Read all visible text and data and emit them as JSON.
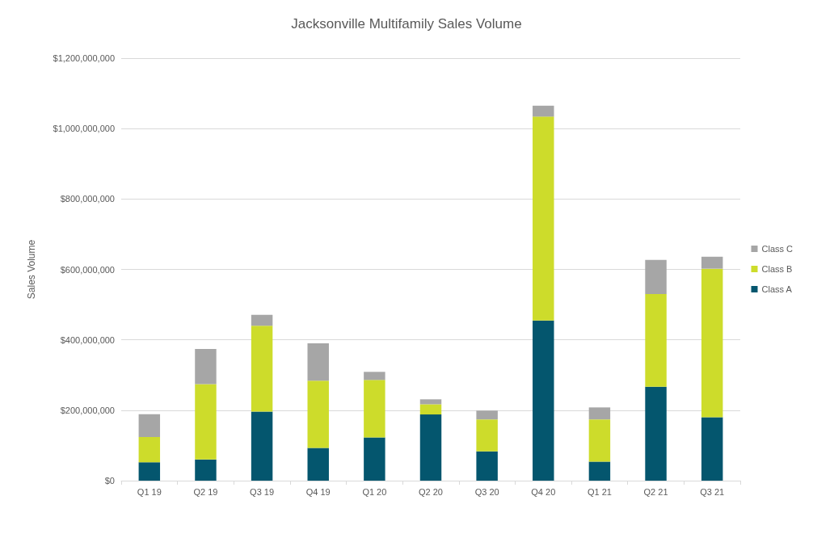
{
  "chart_data": {
    "type": "bar",
    "title": "Jacksonville Multifamily Sales Volume",
    "ylabel": "Sales Volume",
    "categories": [
      "Q1 19",
      "Q2 19",
      "Q3 19",
      "Q4 19",
      "Q1 20",
      "Q2 20",
      "Q3 20",
      "Q4 20",
      "Q1 21",
      "Q2 21",
      "Q3 21"
    ],
    "stacked": true,
    "series": [
      {
        "name": "Class A",
        "color": "#04566e",
        "values": [
          52000000,
          60000000,
          196000000,
          93000000,
          123000000,
          188000000,
          83000000,
          455000000,
          54000000,
          267000000,
          180000000
        ]
      },
      {
        "name": "Class B",
        "color": "#cddc2b",
        "values": [
          72000000,
          214000000,
          244000000,
          191000000,
          163000000,
          29000000,
          91000000,
          579000000,
          120000000,
          263000000,
          422000000
        ]
      },
      {
        "name": "Class C",
        "color": "#a6a6a6",
        "values": [
          65000000,
          100000000,
          31000000,
          106000000,
          23000000,
          14000000,
          25000000,
          31000000,
          34000000,
          97000000,
          34000000
        ]
      }
    ],
    "ylim": [
      0,
      1200000000
    ],
    "yticks": [
      {
        "value": 0,
        "label": "$0"
      },
      {
        "value": 200000000,
        "label": "$200,000,000"
      },
      {
        "value": 400000000,
        "label": "$400,000,000"
      },
      {
        "value": 600000000,
        "label": "$600,000,000"
      },
      {
        "value": 800000000,
        "label": "$800,000,000"
      },
      {
        "value": 1000000000,
        "label": "$1,000,000,000"
      },
      {
        "value": 1200000000,
        "label": "$1,200,000,000"
      }
    ],
    "grid": "y",
    "legend": "right"
  }
}
